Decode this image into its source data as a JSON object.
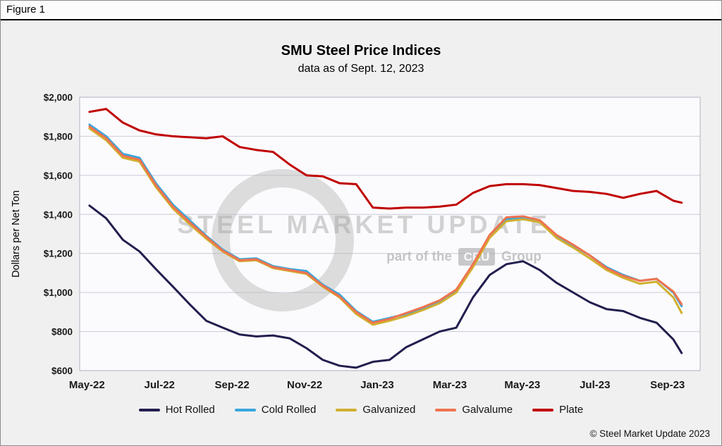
{
  "figure_label": "Figure 1",
  "title": "SMU Steel Price Indices",
  "subtitle": "data as of Sept. 12, 2023",
  "y_axis_title": "Dollars per Net Ton",
  "copyright": "© Steel Market Update 2023",
  "watermark": {
    "line1": "STEEL MARKET UPDATE",
    "line2_prefix": "part of the",
    "line2_badge": "CRU",
    "line2_suffix": "Group"
  },
  "chart_data": {
    "type": "line",
    "title": "SMU Steel Price Indices",
    "subtitle": "data as of Sept. 12, 2023",
    "xlabel": "",
    "ylabel": "Dollars per Net Ton",
    "ylim": [
      600,
      2000
    ],
    "xlim": [
      -0.2,
      16.9
    ],
    "grid": "horizontal",
    "legend_position": "bottom",
    "y_ticks": [
      600,
      800,
      1000,
      1200,
      1400,
      1600,
      1800,
      2000
    ],
    "y_tick_labels": [
      "$600",
      "$800",
      "$1,000",
      "$1,200",
      "$1,400",
      "$1,600",
      "$1,800",
      "$2,000"
    ],
    "x_tick_labels": [
      "May-22",
      "Jul-22",
      "Sep-22",
      "Nov-22",
      "Jan-23",
      "Mar-23",
      "May-23",
      "Jul-23",
      "Sep-23"
    ],
    "x_tick_months": [
      0,
      2,
      4,
      6,
      8,
      10,
      12,
      14,
      16
    ],
    "x_months": [
      0.07,
      0.53,
      0.99,
      1.45,
      1.9,
      2.37,
      2.83,
      3.29,
      3.74,
      4.21,
      4.67,
      5.13,
      5.59,
      6.05,
      6.5,
      6.96,
      7.42,
      7.88,
      8.34,
      8.8,
      9.26,
      9.72,
      10.18,
      10.64,
      11.1,
      11.56,
      12.02,
      12.48,
      12.94,
      13.4,
      13.86,
      14.32,
      14.78,
      15.24,
      15.7,
      16.16,
      16.39
    ],
    "series": [
      {
        "name": "Hot Rolled",
        "color": "#221e4e",
        "values": [
          1445,
          1380,
          1270,
          1210,
          1120,
          1030,
          940,
          855,
          820,
          785,
          775,
          780,
          765,
          715,
          655,
          625,
          615,
          645,
          655,
          720,
          760,
          800,
          820,
          975,
          1090,
          1145,
          1160,
          1115,
          1050,
          1000,
          950,
          915,
          905,
          870,
          845,
          760,
          690
        ]
      },
      {
        "name": "Cold Rolled",
        "color": "#39a6dc",
        "values": [
          1860,
          1800,
          1710,
          1690,
          1560,
          1450,
          1370,
          1290,
          1220,
          1170,
          1175,
          1135,
          1120,
          1110,
          1040,
          990,
          905,
          850,
          870,
          890,
          920,
          955,
          1010,
          1140,
          1290,
          1375,
          1385,
          1370,
          1290,
          1240,
          1190,
          1130,
          1090,
          1060,
          1070,
          1000,
          930
        ]
      },
      {
        "name": "Galvanized",
        "color": "#d1b02f",
        "values": [
          1840,
          1780,
          1690,
          1670,
          1540,
          1430,
          1350,
          1275,
          1210,
          1160,
          1165,
          1125,
          1110,
          1095,
          1030,
          975,
          890,
          835,
          855,
          880,
          910,
          945,
          1000,
          1130,
          1280,
          1365,
          1375,
          1360,
          1280,
          1230,
          1175,
          1115,
          1075,
          1045,
          1055,
          975,
          895
        ]
      },
      {
        "name": "Galvalume",
        "color": "#f0734f",
        "values": [
          1850,
          1790,
          1700,
          1680,
          1550,
          1440,
          1360,
          1285,
          1215,
          1165,
          1170,
          1130,
          1115,
          1100,
          1035,
          980,
          900,
          845,
          865,
          895,
          925,
          960,
          1015,
          1145,
          1295,
          1385,
          1390,
          1370,
          1295,
          1245,
          1190,
          1125,
          1085,
          1060,
          1070,
          1005,
          940
        ]
      },
      {
        "name": "Plate",
        "color": "#c00000",
        "values": [
          1925,
          1940,
          1870,
          1830,
          1810,
          1800,
          1795,
          1790,
          1800,
          1745,
          1730,
          1720,
          1655,
          1600,
          1595,
          1560,
          1555,
          1435,
          1430,
          1435,
          1435,
          1440,
          1450,
          1510,
          1545,
          1555,
          1555,
          1550,
          1535,
          1520,
          1515,
          1505,
          1485,
          1505,
          1520,
          1470,
          1460
        ]
      }
    ]
  }
}
